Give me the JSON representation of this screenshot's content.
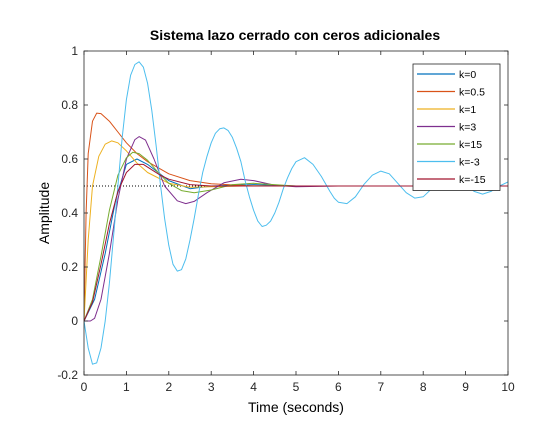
{
  "chart_data": {
    "type": "line",
    "title": "Sistema lazo cerrado con ceros adicionales",
    "xlabel": "Time (seconds)",
    "ylabel": "Amplitude",
    "xlim": [
      0,
      10
    ],
    "ylim": [
      -0.2,
      1
    ],
    "xticks": [
      0,
      1,
      2,
      3,
      4,
      5,
      6,
      7,
      8,
      9,
      10
    ],
    "yticks": [
      -0.2,
      0,
      0.2,
      0.4,
      0.6,
      0.8,
      1
    ],
    "ytick_labels": [
      "-0.2",
      "0",
      "0.2",
      "0.4",
      "0.6",
      "0.8",
      "1"
    ],
    "grid": false,
    "legend_position": "top-right",
    "reference_line": {
      "y": 0.5,
      "style": "dotted"
    },
    "series": [
      {
        "name": "k=0",
        "color": "#0072BD",
        "x": [
          0,
          0.25,
          0.5,
          0.75,
          1,
          1.25,
          1.5,
          1.75,
          2,
          2.5,
          3,
          4,
          5,
          6,
          8,
          10
        ],
        "y": [
          0,
          0.08,
          0.25,
          0.45,
          0.58,
          0.6,
          0.58,
          0.55,
          0.52,
          0.49,
          0.5,
          0.505,
          0.5,
          0.5,
          0.5,
          0.5
        ]
      },
      {
        "name": "k=0.5",
        "color": "#D95319",
        "x": [
          0,
          0.05,
          0.1,
          0.2,
          0.3,
          0.4,
          0.6,
          0.8,
          1,
          1.25,
          1.5,
          2,
          2.5,
          3,
          4,
          5,
          6,
          8,
          10
        ],
        "y": [
          0,
          0.4,
          0.62,
          0.74,
          0.77,
          0.768,
          0.74,
          0.7,
          0.66,
          0.62,
          0.59,
          0.545,
          0.52,
          0.508,
          0.5,
          0.5,
          0.5,
          0.5,
          0.5
        ]
      },
      {
        "name": "k=1",
        "color": "#EDB120",
        "x": [
          0,
          0.1,
          0.2,
          0.35,
          0.5,
          0.65,
          0.8,
          1,
          1.25,
          1.5,
          2,
          2.5,
          3,
          4,
          5,
          6,
          8,
          10
        ],
        "y": [
          0,
          0.3,
          0.5,
          0.61,
          0.655,
          0.667,
          0.66,
          0.63,
          0.585,
          0.55,
          0.51,
          0.495,
          0.497,
          0.501,
          0.5,
          0.5,
          0.5,
          0.5
        ]
      },
      {
        "name": "k=3",
        "color": "#7E2F8E",
        "x": [
          0,
          0.15,
          0.25,
          0.4,
          0.6,
          0.8,
          1,
          1.2,
          1.3,
          1.45,
          1.65,
          1.9,
          2.2,
          2.4,
          2.6,
          2.9,
          3.3,
          3.7,
          4,
          4.5,
          5,
          6,
          8,
          10
        ],
        "y": [
          0,
          0.0,
          0.01,
          0.08,
          0.25,
          0.45,
          0.6,
          0.672,
          0.683,
          0.67,
          0.6,
          0.5,
          0.445,
          0.435,
          0.443,
          0.475,
          0.512,
          0.525,
          0.52,
          0.503,
          0.497,
          0.5,
          0.5,
          0.5
        ]
      },
      {
        "name": "k=15",
        "color": "#77AC30",
        "x": [
          0,
          0.2,
          0.4,
          0.6,
          0.8,
          1,
          1.15,
          1.3,
          1.5,
          1.75,
          2,
          2.3,
          2.6,
          3,
          3.5,
          4,
          5,
          6,
          8,
          10
        ],
        "y": [
          0,
          0.08,
          0.24,
          0.41,
          0.54,
          0.605,
          0.625,
          0.62,
          0.595,
          0.55,
          0.51,
          0.483,
          0.475,
          0.485,
          0.505,
          0.51,
          0.5,
          0.5,
          0.5,
          0.5
        ]
      },
      {
        "name": "k=-3",
        "color": "#4DBEEE",
        "x": [
          0,
          0.1,
          0.2,
          0.3,
          0.4,
          0.5,
          0.6,
          0.7,
          0.8,
          0.9,
          1,
          1.1,
          1.2,
          1.3,
          1.4,
          1.5,
          1.6,
          1.7,
          1.8,
          1.9,
          2,
          2.1,
          2.2,
          2.3,
          2.4,
          2.5,
          2.6,
          2.7,
          2.8,
          2.9,
          3,
          3.1,
          3.2,
          3.3,
          3.4,
          3.5,
          3.6,
          3.7,
          3.8,
          3.9,
          4,
          4.1,
          4.2,
          4.3,
          4.4,
          4.5,
          4.6,
          4.7,
          4.8,
          4.9,
          5,
          5.2,
          5.4,
          5.6,
          5.8,
          5.9,
          6,
          6.2,
          6.4,
          6.6,
          6.8,
          7,
          7.2,
          7.4,
          7.6,
          7.8,
          8,
          8.2,
          8.4,
          8.6,
          8.8,
          9,
          9.2,
          9.4,
          9.6,
          9.8,
          10
        ],
        "y": [
          0,
          -0.1,
          -0.16,
          -0.155,
          -0.1,
          0.0,
          0.14,
          0.32,
          0.5,
          0.68,
          0.82,
          0.91,
          0.95,
          0.96,
          0.94,
          0.88,
          0.78,
          0.65,
          0.51,
          0.38,
          0.28,
          0.21,
          0.185,
          0.19,
          0.23,
          0.3,
          0.38,
          0.47,
          0.55,
          0.61,
          0.66,
          0.695,
          0.712,
          0.715,
          0.705,
          0.68,
          0.64,
          0.59,
          0.52,
          0.46,
          0.41,
          0.37,
          0.35,
          0.355,
          0.37,
          0.4,
          0.44,
          0.49,
          0.53,
          0.565,
          0.59,
          0.605,
          0.58,
          0.535,
          0.48,
          0.455,
          0.44,
          0.435,
          0.46,
          0.505,
          0.54,
          0.555,
          0.545,
          0.51,
          0.475,
          0.455,
          0.46,
          0.49,
          0.52,
          0.535,
          0.53,
          0.505,
          0.48,
          0.47,
          0.48,
          0.5,
          0.515
        ]
      },
      {
        "name": "k=-15",
        "color": "#A2142F",
        "x": [
          0,
          0.2,
          0.4,
          0.6,
          0.8,
          1,
          1.2,
          1.4,
          1.6,
          1.8,
          2,
          2.5,
          3,
          3.5,
          4,
          5,
          6,
          8,
          10
        ],
        "y": [
          0,
          0.07,
          0.21,
          0.36,
          0.48,
          0.55,
          0.58,
          0.58,
          0.56,
          0.54,
          0.525,
          0.505,
          0.5,
          0.5,
          0.5,
          0.5,
          0.5,
          0.5,
          0.5
        ]
      }
    ]
  }
}
